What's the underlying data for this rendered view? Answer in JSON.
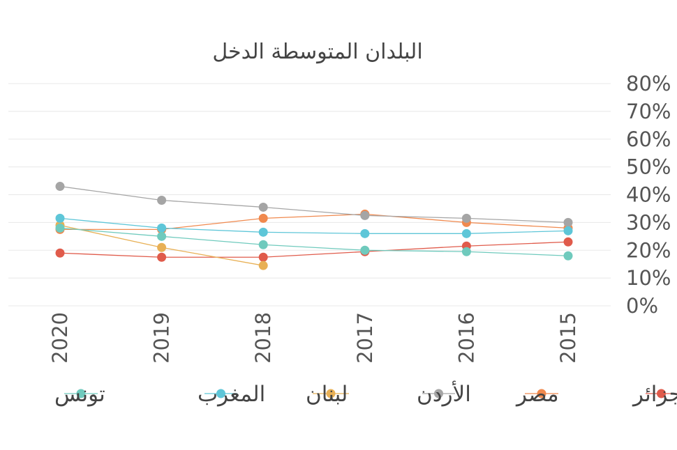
{
  "chart_data": {
    "type": "line",
    "title": "البلدان المتوسطة الدخل",
    "xlabel": "",
    "ylabel": "",
    "x": [
      "2020",
      "2019",
      "2018",
      "2017",
      "2016",
      "2015"
    ],
    "ylim": [
      0,
      80
    ],
    "yticks": [
      "80%",
      "70%",
      "60%",
      "50%",
      "40%",
      "30%",
      "20%",
      "10%",
      "0%"
    ],
    "grid": true,
    "legend_position": "bottom",
    "series": [
      {
        "name": "الجزائر",
        "color": "#e05b4b",
        "values": [
          19,
          17.5,
          17.5,
          19.5,
          21.5,
          23
        ]
      },
      {
        "name": "مصر",
        "color": "#f0894e",
        "values": [
          27.5,
          27.5,
          31.5,
          33,
          30,
          28
        ]
      },
      {
        "name": "الأردن",
        "color": "#a5a5a5",
        "values": [
          43,
          38,
          35.5,
          32.5,
          31.5,
          30
        ]
      },
      {
        "name": "لبنان",
        "color": "#e8b055",
        "values": [
          29,
          21,
          14.5,
          null,
          null,
          null
        ]
      },
      {
        "name": "المغرب",
        "color": "#5ec6d8",
        "values": [
          31.5,
          28,
          26.5,
          26,
          26,
          27
        ]
      },
      {
        "name": "تونس",
        "color": "#6fcabd",
        "values": [
          28,
          25,
          22,
          20,
          19.5,
          18
        ]
      }
    ]
  }
}
